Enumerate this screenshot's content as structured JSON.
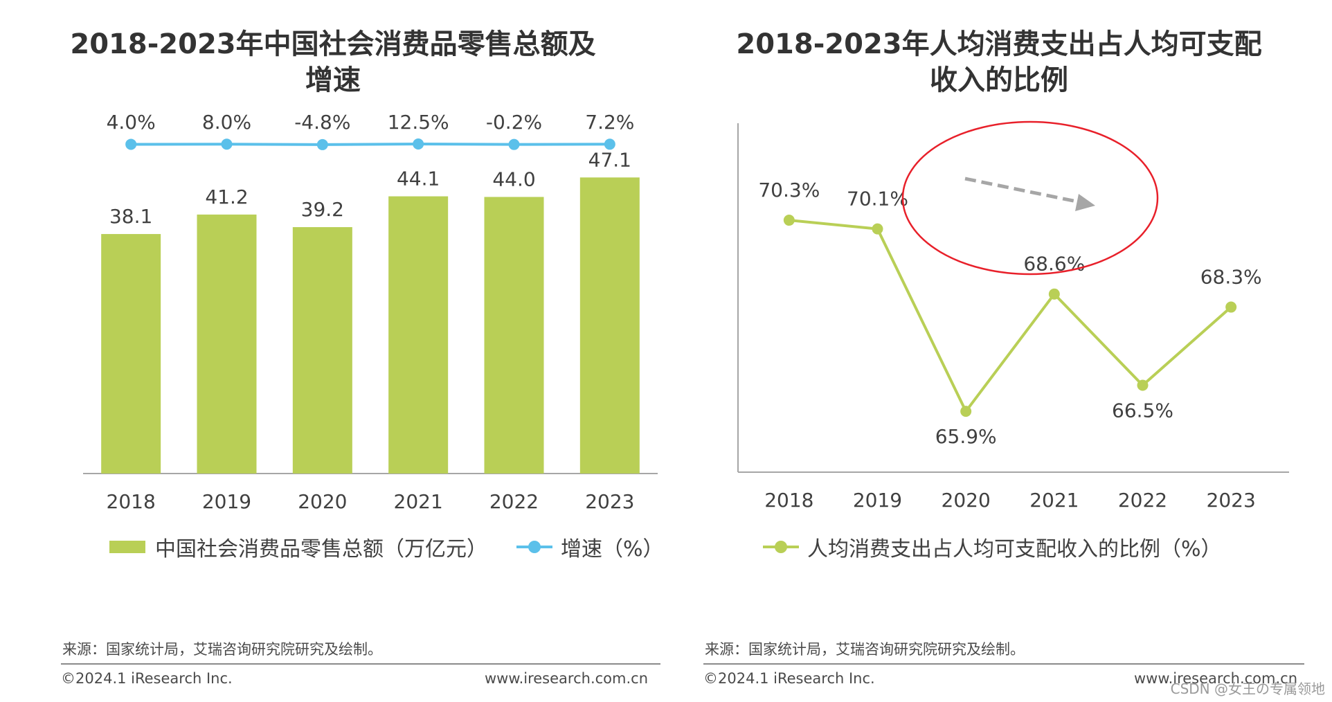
{
  "left": {
    "title_line1": "2018-2023年中国社会消费品零售总额及",
    "title_line2": "增速",
    "legend_bar": "中国社会消费品零售总额（万亿元）",
    "legend_line": "增速（%）",
    "source": "来源：国家统计局，艾瑞咨询研究院研究及绘制。",
    "copyright": "©2024.1 iResearch Inc.",
    "website": "www.iresearch.com.cn"
  },
  "right": {
    "title_line1": "2018-2023年人均消费支出占人均可支配",
    "title_line2": "收入的比例",
    "legend_line": "人均消费支出占人均可支配收入的比例（%）",
    "source": "来源：国家统计局，艾瑞咨询研究院研究及绘制。",
    "copyright": "©2024.1 iResearch Inc.",
    "website": "www.iresearch.com.cn"
  },
  "watermark": "CSDN @女王の专属领地",
  "colors": {
    "bar": "#b9cf56",
    "growth_line": "#5bc0ea",
    "ratio_line": "#b9cf56",
    "annotation_circle": "#e8202a",
    "annotation_arrow": "#a6a6a6",
    "axis": "#a6a6a6"
  },
  "chart_data": [
    {
      "type": "bar",
      "title": "2018-2023年中国社会消费品零售总额及增速",
      "categories": [
        "2018",
        "2019",
        "2020",
        "2021",
        "2022",
        "2023"
      ],
      "series": [
        {
          "name": "中国社会消费品零售总额（万亿元）",
          "type": "bar",
          "values": [
            38.1,
            41.2,
            39.2,
            44.1,
            44.0,
            47.1
          ],
          "labels": [
            "38.1",
            "41.2",
            "39.2",
            "44.1",
            "44.0",
            "47.1"
          ]
        },
        {
          "name": "增速（%）",
          "type": "line",
          "values": [
            4.0,
            8.0,
            -4.8,
            12.5,
            -0.2,
            7.2
          ],
          "labels": [
            "4.0%",
            "8.0%",
            "-4.8%",
            "12.5%",
            "-0.2%",
            "7.2%"
          ]
        }
      ],
      "ylim_bar": [
        0,
        50
      ],
      "ylim_line": [
        -400,
        350
      ],
      "legend": "bottom"
    },
    {
      "type": "line",
      "title": "2018-2023年人均消费支出占人均可支配收入的比例",
      "categories": [
        "2018",
        "2019",
        "2020",
        "2021",
        "2022",
        "2023"
      ],
      "series": [
        {
          "name": "人均消费支出占人均可支配收入的比例（%）",
          "values": [
            70.3,
            70.1,
            65.9,
            68.6,
            66.5,
            68.3
          ],
          "labels": [
            "70.3%",
            "70.1%",
            "65.9%",
            "68.6%",
            "66.5%",
            "68.3%"
          ]
        }
      ],
      "ylim": [
        64.5,
        72.5
      ],
      "annotation": "downward trend arrow inside red ellipse",
      "legend": "bottom"
    }
  ]
}
